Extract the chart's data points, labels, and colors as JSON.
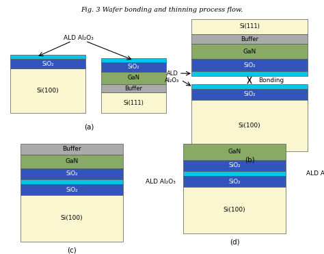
{
  "title": "Fig. 3 Wafer bonding and thinning process flow.",
  "colors": {
    "Si": "#FAF6D0",
    "SiO2_cyan": "#00C8E8",
    "SiO2_blue": "#3355BB",
    "GaN": "#88AA66",
    "Buffer": "#AAAAAA",
    "edge": "#555555"
  },
  "panels": {
    "a_label": "(a)",
    "b_label": "(b)",
    "c_label": "(c)",
    "d_label": "(d)"
  },
  "ald_label": "ALD Al₂O₃",
  "bonding_label": "Bonding"
}
